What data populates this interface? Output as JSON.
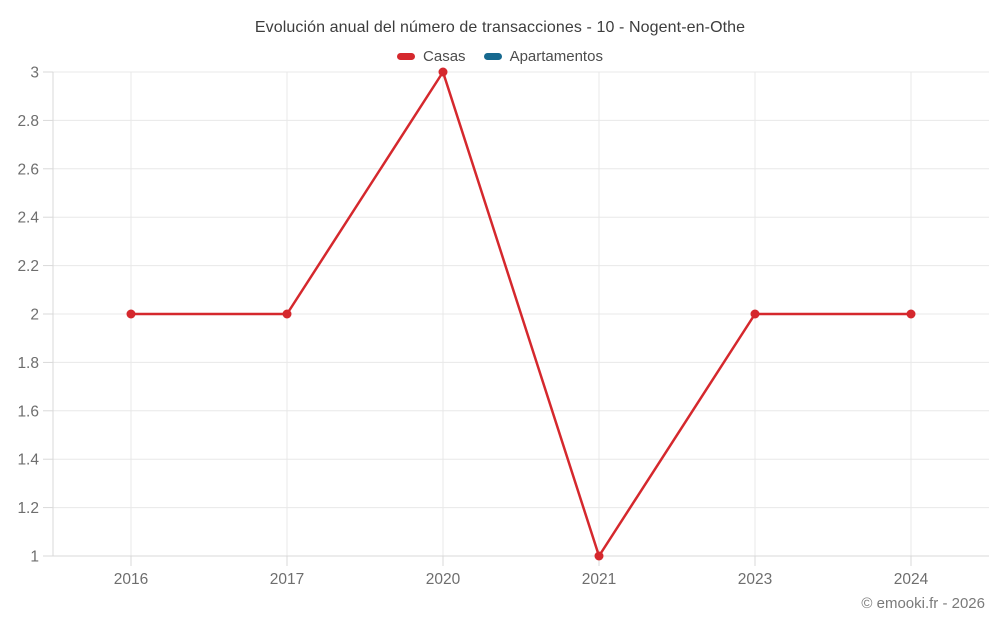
{
  "chart": {
    "title": "Evolución anual del número de transacciones - 10 - Nogent-en-Othe"
  },
  "legend": {
    "items": [
      {
        "label": "Casas",
        "color": "#d5282d"
      },
      {
        "label": "Apartamentos",
        "color": "#17698f"
      }
    ]
  },
  "footer": {
    "credit": "© emooki.fr - 2026"
  },
  "chart_data": {
    "type": "line",
    "title": "Evolución anual del número de transacciones - 10 - Nogent-en-Othe",
    "categories": [
      "2016",
      "2017",
      "2020",
      "2021",
      "2023",
      "2024"
    ],
    "series": [
      {
        "name": "Casas",
        "color": "#d5282d",
        "values": [
          2,
          2,
          3,
          1,
          2,
          2
        ]
      },
      {
        "name": "Apartamentos",
        "color": "#17698f",
        "values": []
      }
    ],
    "xlabel": "",
    "ylabel": "",
    "ylim": [
      1,
      3
    ],
    "yticks": [
      "1",
      "1.2",
      "1.4",
      "1.6",
      "1.8",
      "2",
      "2.2",
      "2.4",
      "2.6",
      "2.8",
      "3"
    ],
    "grid": true,
    "legend_position": "top",
    "marker": "circle",
    "colors": {
      "grid": "#e8e8e8",
      "axis": "#d9d9d9",
      "tick_label": "#6e6e6e",
      "title": "#3d3d3d",
      "background": "#ffffff"
    }
  }
}
